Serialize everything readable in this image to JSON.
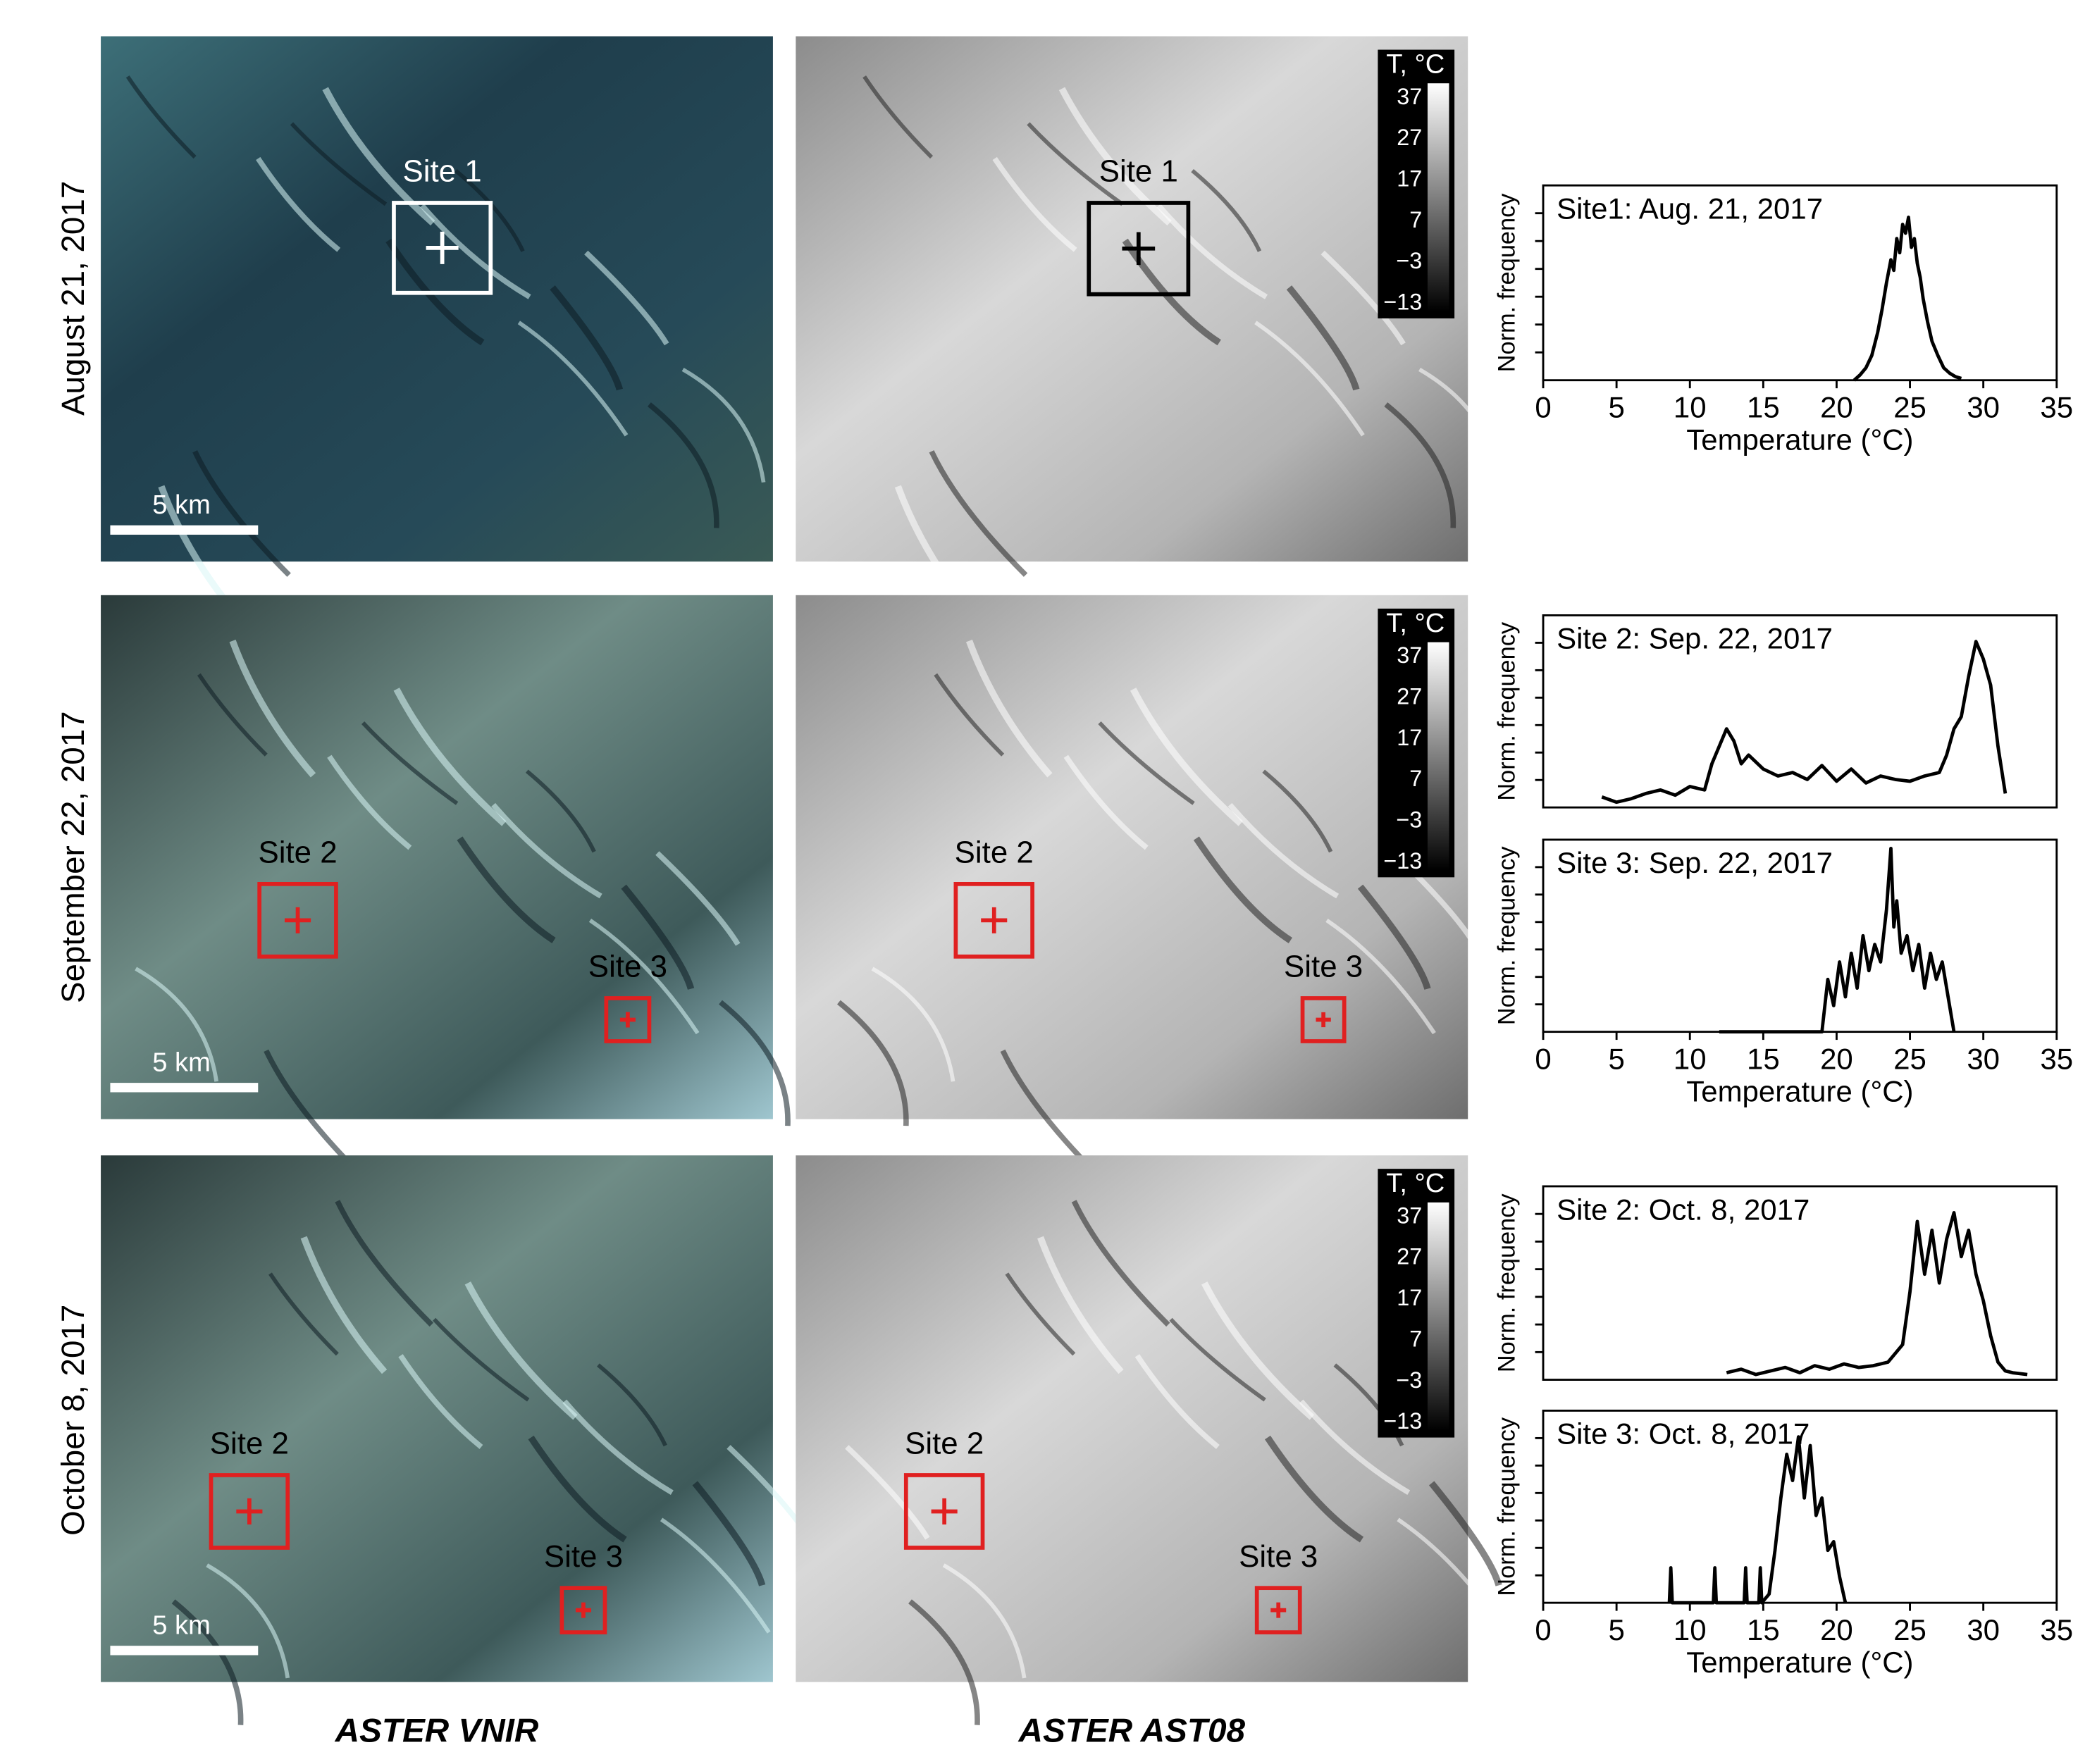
{
  "rows": [
    {
      "label": "August 21, 2017",
      "panels": [
        {
          "scale_bar": "5 km",
          "sites": [
            "Site 1"
          ]
        },
        {
          "colorbar": {
            "title": "T, °C",
            "ticks": [
              "37",
              "27",
              "17",
              "7",
              "−3",
              "−13"
            ]
          },
          "sites": [
            "Site 1"
          ]
        }
      ]
    },
    {
      "label": "September 22, 2017",
      "panels": [
        {
          "scale_bar": "5 km",
          "sites": [
            "Site 2",
            "Site 3"
          ]
        },
        {
          "colorbar": {
            "title": "T, °C",
            "ticks": [
              "37",
              "27",
              "17",
              "7",
              "−3",
              "−13"
            ]
          },
          "sites": [
            "Site 2",
            "Site 3"
          ]
        }
      ]
    },
    {
      "label": "October 8, 2017",
      "panels": [
        {
          "scale_bar": "5 km",
          "sites": [
            "Site 2",
            "Site 3"
          ]
        },
        {
          "colorbar": {
            "title": "T, °C",
            "ticks": [
              "37",
              "27",
              "17",
              "7",
              "−3",
              "−13"
            ]
          },
          "sites": [
            "Site 2",
            "Site 3"
          ]
        }
      ]
    }
  ],
  "columns": [
    "ASTER VNIR",
    "ASTER AST08"
  ],
  "chart_data": [
    {
      "type": "line",
      "title": "Site1: Aug. 21, 2017",
      "ylabel": "Norm. frequency",
      "xlabel": "Temperature (°C)",
      "color": "#000000",
      "x": [
        21.2,
        21.6,
        22.0,
        22.4,
        22.8,
        23.1,
        23.4,
        23.7,
        23.9,
        24.1,
        24.3,
        24.5,
        24.7,
        24.9,
        25.1,
        25.3,
        25.5,
        25.7,
        25.9,
        26.2,
        26.5,
        26.9,
        27.3,
        27.7,
        28.1,
        28.5
      ],
      "values": [
        0,
        0.03,
        0.07,
        0.14,
        0.27,
        0.4,
        0.55,
        0.68,
        0.62,
        0.8,
        0.72,
        0.88,
        0.83,
        0.92,
        0.75,
        0.8,
        0.66,
        0.58,
        0.46,
        0.33,
        0.22,
        0.14,
        0.07,
        0.04,
        0.02,
        0.01
      ],
      "xlim": [
        0,
        35
      ],
      "ylim": [
        0,
        1.1
      ],
      "xticks": [
        0,
        5,
        10,
        15,
        20,
        25,
        30,
        35
      ]
    },
    {
      "type": "line",
      "title": "Site 2: Sep. 22, 2017",
      "ylabel": "Norm. frequency",
      "color": "#000000",
      "x": [
        4,
        5,
        6,
        7,
        8,
        9,
        10,
        11,
        11.5,
        12,
        12.5,
        13,
        13.5,
        14,
        15,
        16,
        17,
        18,
        19,
        20,
        21,
        22,
        23,
        24,
        25,
        26,
        27,
        27.5,
        28,
        28.5,
        29,
        29.5,
        30,
        30.5,
        31,
        31.5
      ],
      "values": [
        0.06,
        0.03,
        0.05,
        0.08,
        0.1,
        0.07,
        0.12,
        0.1,
        0.25,
        0.35,
        0.45,
        0.38,
        0.25,
        0.3,
        0.22,
        0.18,
        0.2,
        0.16,
        0.24,
        0.15,
        0.22,
        0.14,
        0.18,
        0.16,
        0.15,
        0.18,
        0.2,
        0.3,
        0.45,
        0.52,
        0.75,
        0.95,
        0.85,
        0.7,
        0.35,
        0.08
      ],
      "xlim": [
        0,
        35
      ],
      "ylim": [
        0,
        1.1
      ]
    },
    {
      "type": "line",
      "title": "Site 3: Sep. 22, 2017",
      "ylabel": "Norm. frequency",
      "xlabel": "Temperature (°C)",
      "color": "#000000",
      "x": [
        12,
        19,
        19.4,
        19.8,
        20.2,
        20.6,
        21,
        21.4,
        21.8,
        22.2,
        22.6,
        23,
        23.4,
        23.7,
        23.9,
        24.1,
        24.4,
        24.8,
        25.2,
        25.6,
        26,
        26.4,
        26.8,
        27.2,
        27.6,
        28
      ],
      "values": [
        0,
        0,
        0.3,
        0.15,
        0.4,
        0.2,
        0.45,
        0.25,
        0.55,
        0.35,
        0.5,
        0.4,
        0.7,
        1.05,
        0.6,
        0.75,
        0.45,
        0.55,
        0.35,
        0.5,
        0.25,
        0.45,
        0.3,
        0.4,
        0.2,
        0
      ],
      "xlim": [
        0,
        35
      ],
      "ylim": [
        0,
        1.1
      ],
      "xticks": [
        0,
        5,
        10,
        15,
        20,
        25,
        30,
        35
      ]
    },
    {
      "type": "line",
      "title": "Site 2: Oct. 8, 2017",
      "ylabel": "Norm. frequency",
      "color": "#000000",
      "x": [
        12.5,
        13.5,
        14.5,
        15.5,
        16.5,
        17.5,
        18.5,
        19.5,
        20.5,
        21.5,
        22.5,
        23.5,
        24.5,
        25,
        25.5,
        26,
        26.5,
        27,
        27.5,
        28,
        28.5,
        29,
        29.5,
        30,
        30.5,
        31,
        31.5,
        32,
        33
      ],
      "values": [
        0.04,
        0.06,
        0.03,
        0.05,
        0.07,
        0.04,
        0.08,
        0.06,
        0.09,
        0.07,
        0.08,
        0.1,
        0.2,
        0.5,
        0.9,
        0.6,
        0.85,
        0.55,
        0.8,
        0.95,
        0.7,
        0.85,
        0.6,
        0.45,
        0.25,
        0.1,
        0.05,
        0.04,
        0.03
      ],
      "xlim": [
        0,
        35
      ],
      "ylim": [
        0,
        1.1
      ]
    },
    {
      "type": "line",
      "title": "Site 3: Oct. 8, 2017",
      "ylabel": "Norm. frequency",
      "xlabel": "Temperature (°C)",
      "color": "#000000",
      "x": [
        8.6,
        8.7,
        8.8,
        11.6,
        11.7,
        11.8,
        13.7,
        13.8,
        13.9,
        14.7,
        14.8,
        14.9,
        15.4,
        15.8,
        16.2,
        16.6,
        17,
        17.4,
        17.8,
        18.2,
        18.6,
        19,
        19.4,
        19.8,
        20.2,
        20.6
      ],
      "values": [
        0,
        0.2,
        0,
        0,
        0.2,
        0,
        0,
        0.2,
        0,
        0,
        0.2,
        0,
        0.05,
        0.3,
        0.6,
        0.85,
        0.7,
        0.95,
        0.6,
        0.9,
        0.5,
        0.6,
        0.3,
        0.35,
        0.15,
        0
      ],
      "xlim": [
        0,
        35
      ],
      "ylim": [
        0,
        1.1
      ],
      "xticks": [
        0,
        5,
        10,
        15,
        20,
        25,
        30,
        35
      ]
    }
  ]
}
